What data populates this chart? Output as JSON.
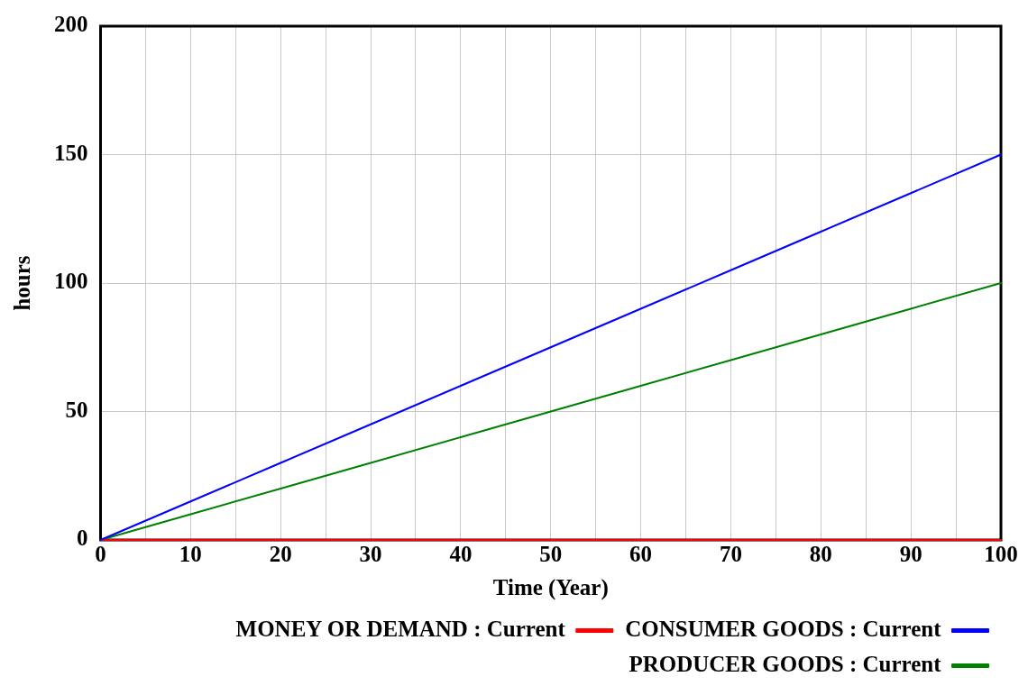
{
  "chart_data": {
    "type": "line",
    "xlabel": "Time (Year)",
    "ylabel": "hours",
    "x": [
      0,
      10,
      20,
      30,
      40,
      50,
      60,
      70,
      80,
      90,
      100
    ],
    "series": [
      {
        "name": "CONSUMER GOODS : Current",
        "color": "#0000ff",
        "values": [
          0,
          15,
          30,
          45,
          60,
          75,
          90,
          105,
          120,
          135,
          150
        ]
      },
      {
        "name": "MONEY OR DEMAND : Current",
        "color": "#ff0000",
        "values": [
          0,
          0,
          0,
          0,
          0,
          0,
          0,
          0,
          0,
          0,
          0
        ]
      },
      {
        "name": "PRODUCER GOODS : Current",
        "color": "#008000",
        "values": [
          0,
          10,
          20,
          30,
          40,
          50,
          60,
          70,
          80,
          90,
          100
        ]
      }
    ],
    "xlim": [
      0,
      100
    ],
    "xticks": [
      0,
      {
        "value": 5,
        "label": null
      },
      10,
      {
        "value": 15,
        "label": null
      },
      20,
      {
        "value": 25,
        "label": null
      },
      30,
      {
        "value": 35,
        "label": null
      },
      40,
      {
        "value": 45,
        "label": null
      },
      50,
      {
        "value": 55,
        "label": null
      },
      60,
      {
        "value": 65,
        "label": null
      },
      70,
      {
        "value": 75,
        "label": null
      },
      80,
      {
        "value": 85,
        "label": null
      },
      90,
      {
        "value": 95,
        "label": null
      },
      100
    ],
    "ylim": [
      0,
      200
    ],
    "yticks": [
      0,
      50,
      100,
      150,
      200
    ],
    "grid": true,
    "legend": "bottom",
    "marker": "none",
    "line_style": "solid"
  }
}
